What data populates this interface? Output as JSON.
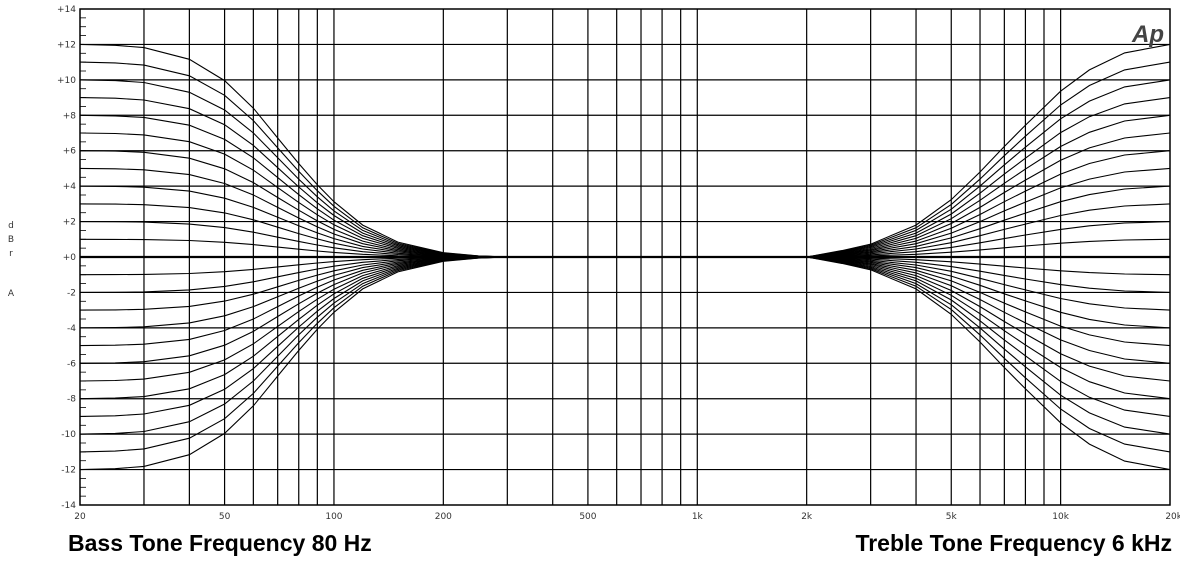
{
  "chart_data": {
    "type": "line",
    "xscale": "log",
    "xlim": [
      20,
      20000
    ],
    "ylim": [
      -14,
      14
    ],
    "grid": true,
    "x_tick_labels": [
      {
        "value": 20,
        "label": "20"
      },
      {
        "value": 50,
        "label": "50"
      },
      {
        "value": 100,
        "label": "100"
      },
      {
        "value": 200,
        "label": "200"
      },
      {
        "value": 500,
        "label": "500"
      },
      {
        "value": 1000,
        "label": "1k"
      },
      {
        "value": 2000,
        "label": "2k"
      },
      {
        "value": 5000,
        "label": "5k"
      },
      {
        "value": 10000,
        "label": "10k"
      },
      {
        "value": 20000,
        "label": "20k"
      }
    ],
    "y_tick_labels": [
      {
        "value": 14,
        "label": "+14"
      },
      {
        "value": 12,
        "label": "+12"
      },
      {
        "value": 10,
        "label": "+10"
      },
      {
        "value": 8,
        "label": "+8"
      },
      {
        "value": 6,
        "label": "+6"
      },
      {
        "value": 4,
        "label": "+4"
      },
      {
        "value": 2,
        "label": "+2"
      },
      {
        "value": 0,
        "label": "+0"
      },
      {
        "value": -2,
        "label": "-2"
      },
      {
        "value": -4,
        "label": "-4"
      },
      {
        "value": -6,
        "label": "-6"
      },
      {
        "value": -8,
        "label": "-8"
      },
      {
        "value": -10,
        "label": "-10"
      },
      {
        "value": -12,
        "label": "-12"
      },
      {
        "value": -14,
        "label": "-14"
      }
    ],
    "ylabel_letters": [
      "d",
      "B",
      "r",
      "A"
    ],
    "bass": {
      "corner_hz": 80,
      "x": [
        20,
        25,
        30,
        40,
        50,
        60,
        70,
        80,
        90,
        100,
        120,
        150,
        200,
        250,
        300
      ],
      "shape": [
        1.0,
        0.996,
        0.985,
        0.93,
        0.83,
        0.7,
        0.56,
        0.44,
        0.34,
        0.26,
        0.15,
        0.07,
        0.02,
        0.005,
        0.0
      ],
      "levels": [
        12,
        11,
        10,
        9,
        8,
        7,
        6,
        5,
        4,
        3,
        2,
        1,
        0,
        -1,
        -2,
        -3,
        -4,
        -5,
        -6,
        -7,
        -8,
        -9,
        -10,
        -11,
        -12
      ]
    },
    "treble": {
      "corner_hz": 6000,
      "x": [
        2000,
        2500,
        3000,
        4000,
        5000,
        6000,
        7000,
        8000,
        10000,
        12000,
        15000,
        20000
      ],
      "shape": [
        0.0,
        0.03,
        0.06,
        0.15,
        0.27,
        0.4,
        0.52,
        0.62,
        0.78,
        0.88,
        0.96,
        1.0
      ],
      "levels": [
        12,
        11,
        10,
        9,
        8,
        7,
        6,
        5,
        4,
        3,
        2,
        1,
        0,
        -1,
        -2,
        -3,
        -4,
        -5,
        -6,
        -7,
        -8,
        -9,
        -10,
        -11,
        -12
      ]
    }
  },
  "logo_text": "Ap",
  "captions": {
    "bass": "Bass Tone Frequency 80 Hz",
    "treble": "Treble Tone Frequency 6 kHz"
  }
}
